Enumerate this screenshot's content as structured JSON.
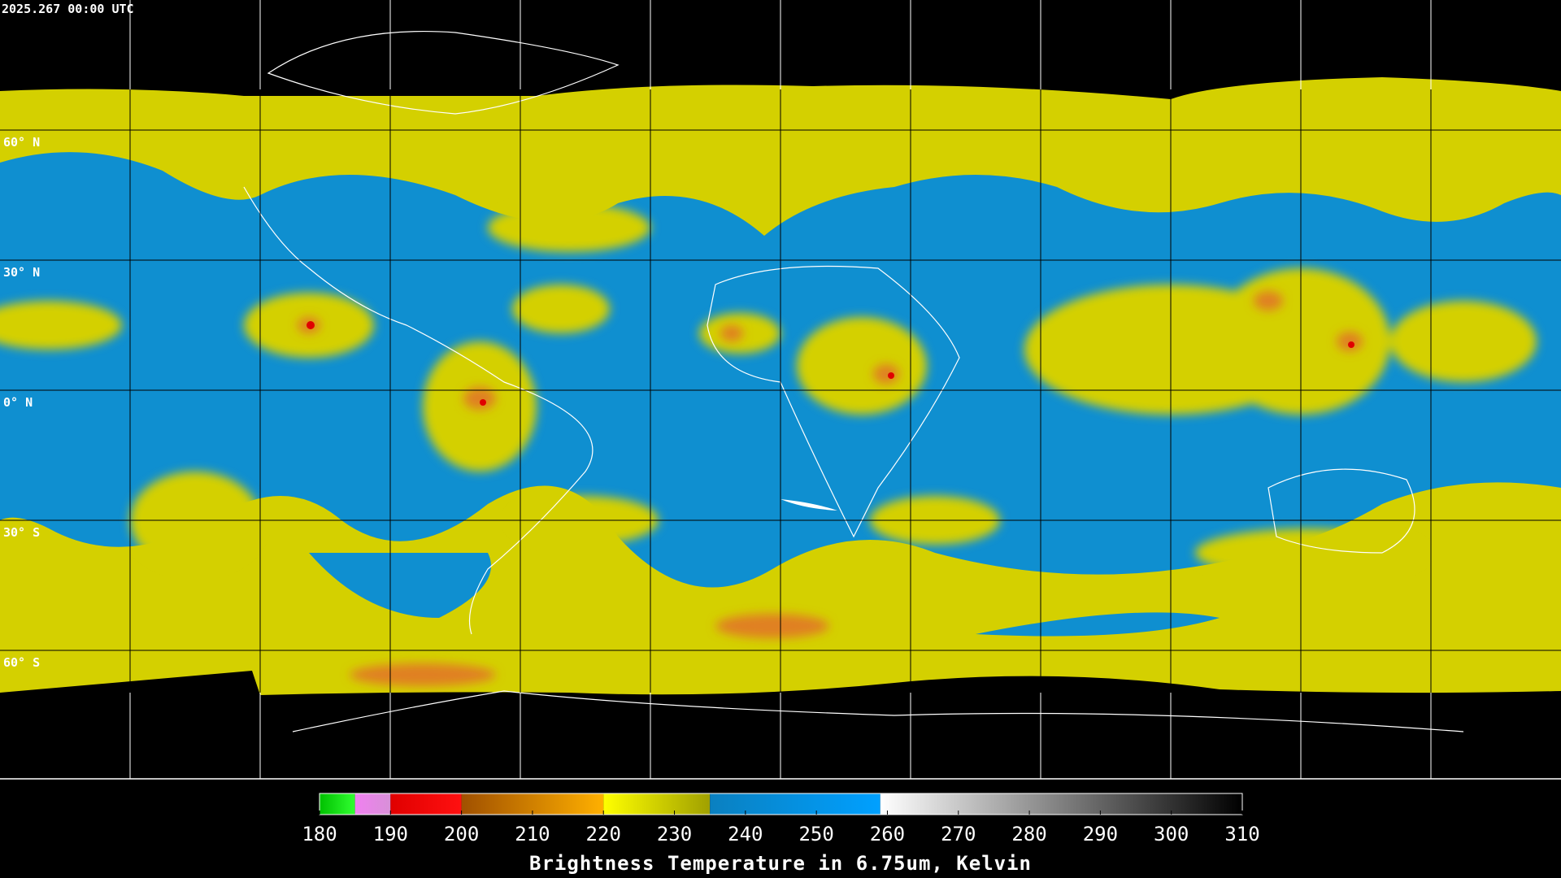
{
  "header": {
    "title": "2025.267 00:00 UTC"
  },
  "map": {
    "latitude_labels": [
      "60° N",
      "30° N",
      "0° N",
      "30° S",
      "60° S"
    ]
  },
  "colorbar": {
    "title": "Brightness Temperature in 6.75um, Kelvin",
    "lim": [
      180,
      310
    ],
    "ticks": [
      180,
      190,
      200,
      210,
      220,
      230,
      240,
      250,
      260,
      270,
      280,
      290,
      300,
      310
    ],
    "segments": [
      {
        "from": 180,
        "to": 185,
        "colors": [
          "#00c000",
          "#30ff30"
        ]
      },
      {
        "from": 185,
        "to": 190,
        "colors": [
          "#f080f0",
          "#d890d8"
        ]
      },
      {
        "from": 190,
        "to": 200,
        "colors": [
          "#e00000",
          "#ff1010"
        ]
      },
      {
        "from": 200,
        "to": 220,
        "colors": [
          "#a05000",
          "#ffb000"
        ]
      },
      {
        "from": 220,
        "to": 235,
        "colors": [
          "#ffff00",
          "#a0a000"
        ]
      },
      {
        "from": 235,
        "to": 259,
        "colors": [
          "#0a80c0",
          "#00a0ff"
        ]
      },
      {
        "from": 259,
        "to": 310,
        "colors": [
          "#ffffff",
          "#000000"
        ]
      }
    ]
  }
}
